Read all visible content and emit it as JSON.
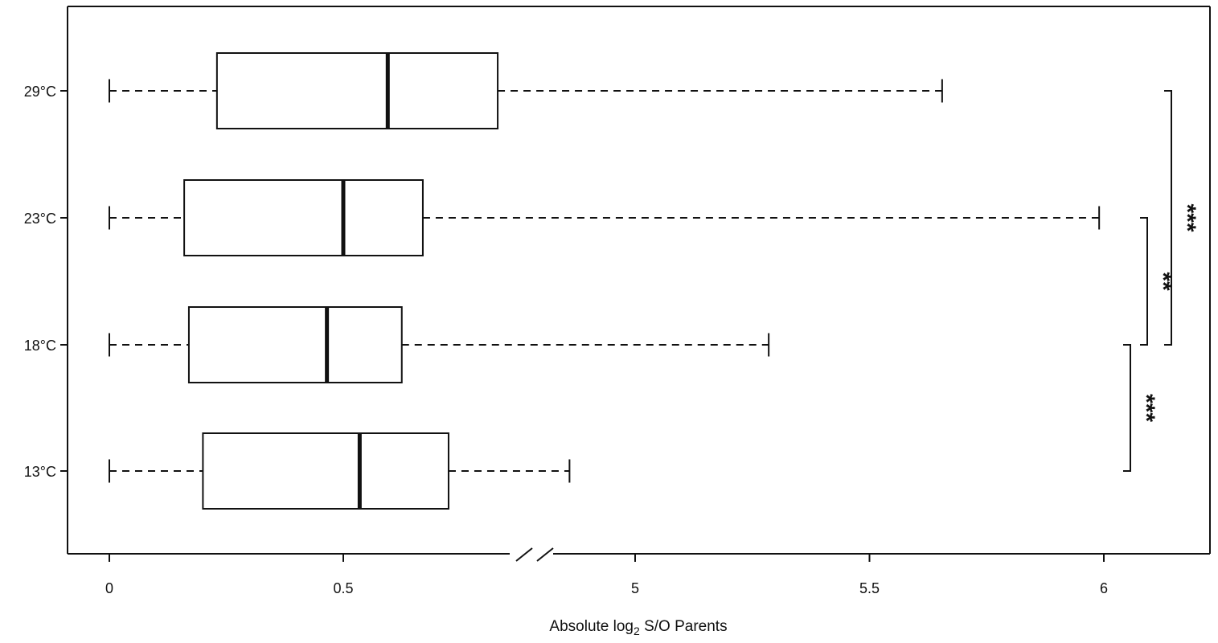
{
  "chart_data": {
    "type": "boxplot",
    "orientation": "horizontal",
    "xlabel": {
      "prefix": "Absolute log",
      "subscript": "2",
      "suffix": " S/O Parents"
    },
    "x_axis": {
      "broken": true,
      "ticks": [
        {
          "label": "0",
          "value": 0
        },
        {
          "label": "0.5",
          "value": 0.5
        },
        {
          "label": "5",
          "value": 5
        },
        {
          "label": "5.5",
          "value": 5.5
        },
        {
          "label": "6",
          "value": 6
        }
      ]
    },
    "categories": [
      "13°C",
      "18°C",
      "23°C",
      "29°C"
    ],
    "boxes": [
      {
        "category": "13°C",
        "whisker_low": 0,
        "q1": 0.2,
        "median": 0.535,
        "q3": 0.725,
        "whisker_high": 4.86
      },
      {
        "category": "18°C",
        "whisker_low": 0,
        "q1": 0.17,
        "median": 0.465,
        "q3": 0.625,
        "whisker_high": 5.285
      },
      {
        "category": "23°C",
        "whisker_low": 0,
        "q1": 0.16,
        "median": 0.5,
        "q3": 0.67,
        "whisker_high": 5.99
      },
      {
        "category": "29°C",
        "whisker_low": 0,
        "q1": 0.23,
        "median": 0.595,
        "q3": 0.83,
        "whisker_high": 5.655
      }
    ],
    "significance": [
      {
        "from": "13°C",
        "to": "18°C",
        "label": "***"
      },
      {
        "from": "18°C",
        "to": "23°C",
        "label": "**"
      },
      {
        "from": "18°C",
        "to": "29°C",
        "label": "***"
      }
    ],
    "grid": false,
    "legend": "none"
  }
}
